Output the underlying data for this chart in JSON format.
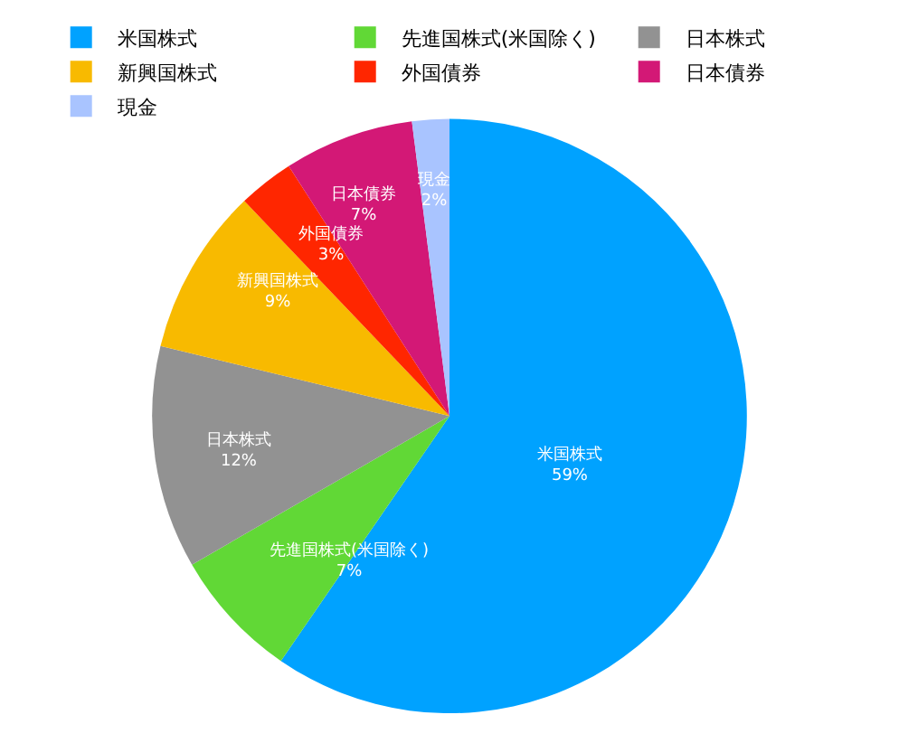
{
  "chart_data": {
    "type": "pie",
    "categories": [
      "米国株式",
      "先進国株式(米国除く)",
      "日本株式",
      "新興国株式",
      "外国債券",
      "日本債券",
      "現金"
    ],
    "values": [
      59,
      7,
      12,
      9,
      3,
      7,
      2
    ],
    "value_labels": [
      "59%",
      "7%",
      "12%",
      "9%",
      "3%",
      "7%",
      "2%"
    ],
    "colors": [
      "#00a2ff",
      "#61d836",
      "#929292",
      "#f8ba00",
      "#ff2600",
      "#d31876",
      "#a9c4ff"
    ],
    "legend": "top"
  }
}
